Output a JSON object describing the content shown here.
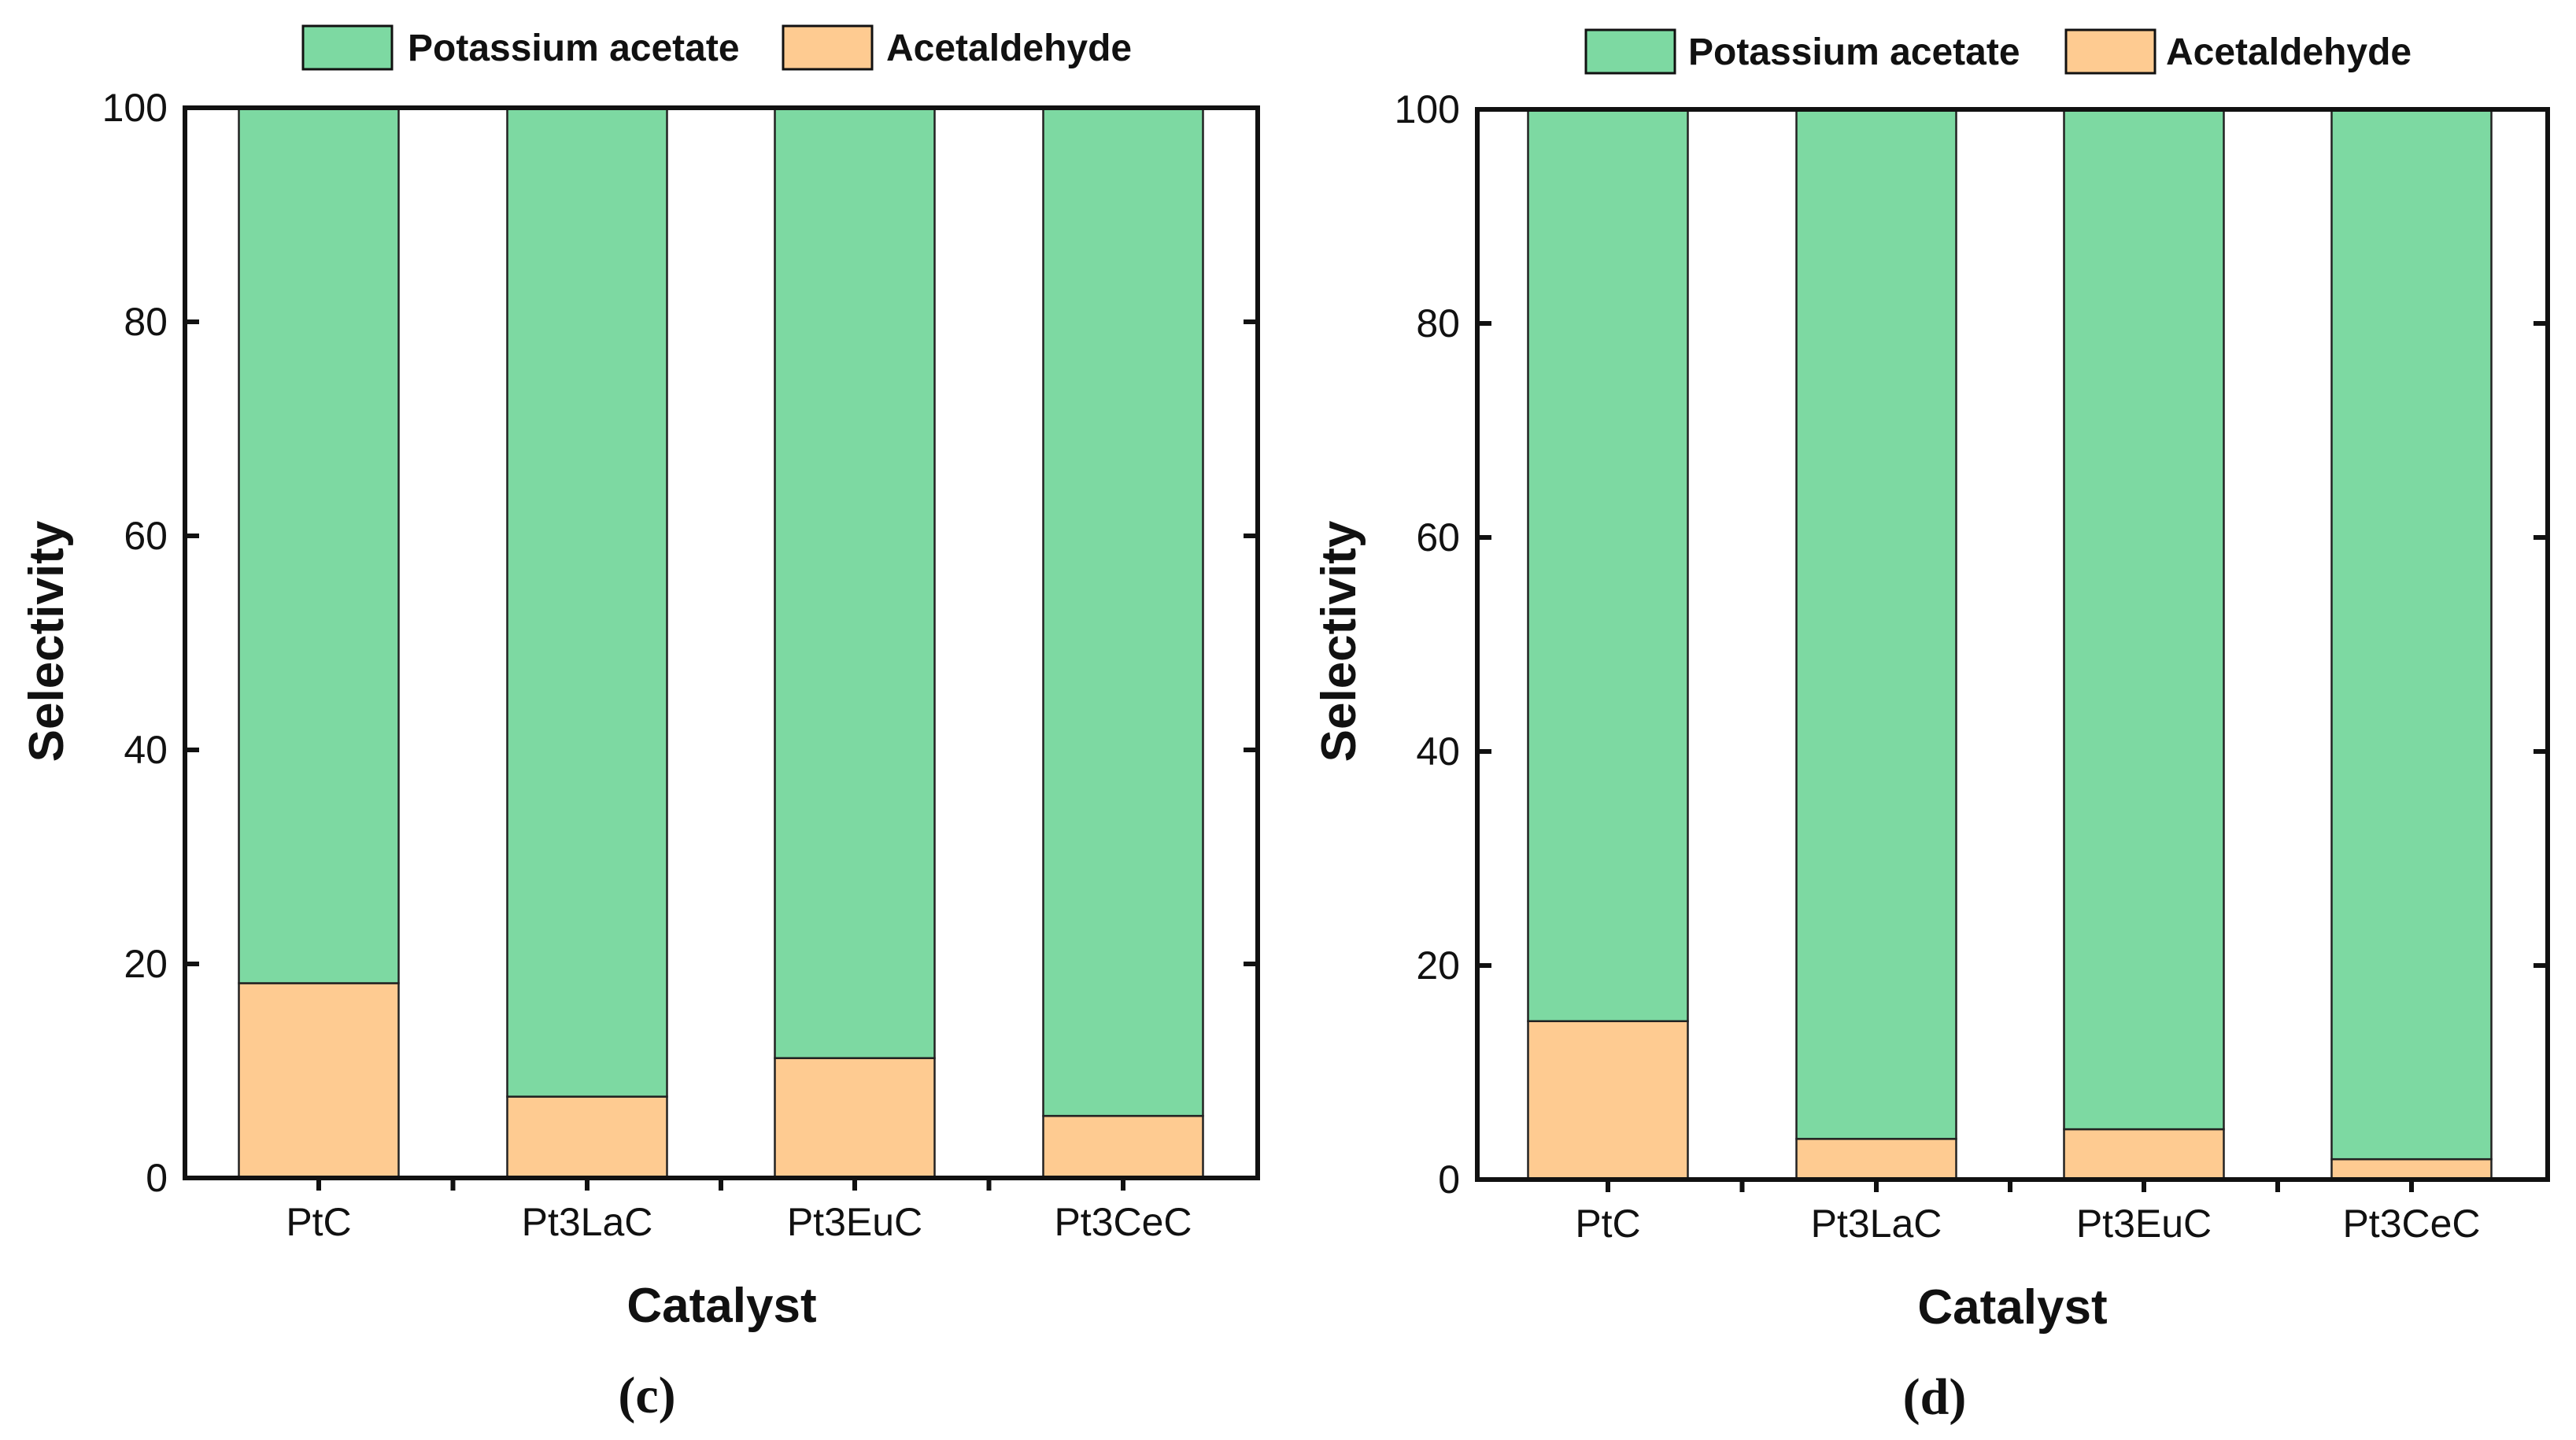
{
  "colors": {
    "potassium_acetate": "#7dd9a2",
    "acetaldehyde": "#fecb91",
    "axis": "#111111",
    "background": "#ffffff"
  },
  "chart_data": [
    {
      "type": "bar",
      "stacked": true,
      "panel_label": "(c)",
      "xlabel": "Catalyst",
      "ylabel": "Selectivity",
      "ylim": [
        0,
        100
      ],
      "yticks": [
        "0",
        "20",
        "40",
        "60",
        "80",
        "100"
      ],
      "categories": [
        "PtC",
        "Pt3LaC",
        "Pt3EuC",
        "Pt3CeC"
      ],
      "legend_position": "top",
      "series": [
        {
          "name": "Acetaldehyde",
          "values": [
            18.2,
            7.6,
            11.2,
            5.8
          ]
        },
        {
          "name": "Potassium acetate",
          "values": [
            81.8,
            92.4,
            88.8,
            94.2
          ]
        }
      ]
    },
    {
      "type": "bar",
      "stacked": true,
      "panel_label": "(d)",
      "xlabel": "Catalyst",
      "ylabel": "Selectivity",
      "ylim": [
        0,
        100
      ],
      "yticks": [
        "0",
        "20",
        "40",
        "60",
        "80",
        "100"
      ],
      "categories": [
        "PtC",
        "Pt3LaC",
        "Pt3EuC",
        "Pt3CeC"
      ],
      "legend_position": "top",
      "series": [
        {
          "name": "Acetaldehyde",
          "values": [
            14.8,
            3.8,
            4.7,
            1.9
          ]
        },
        {
          "name": "Potassium acetate",
          "values": [
            85.2,
            96.2,
            95.3,
            98.1
          ]
        }
      ]
    }
  ]
}
